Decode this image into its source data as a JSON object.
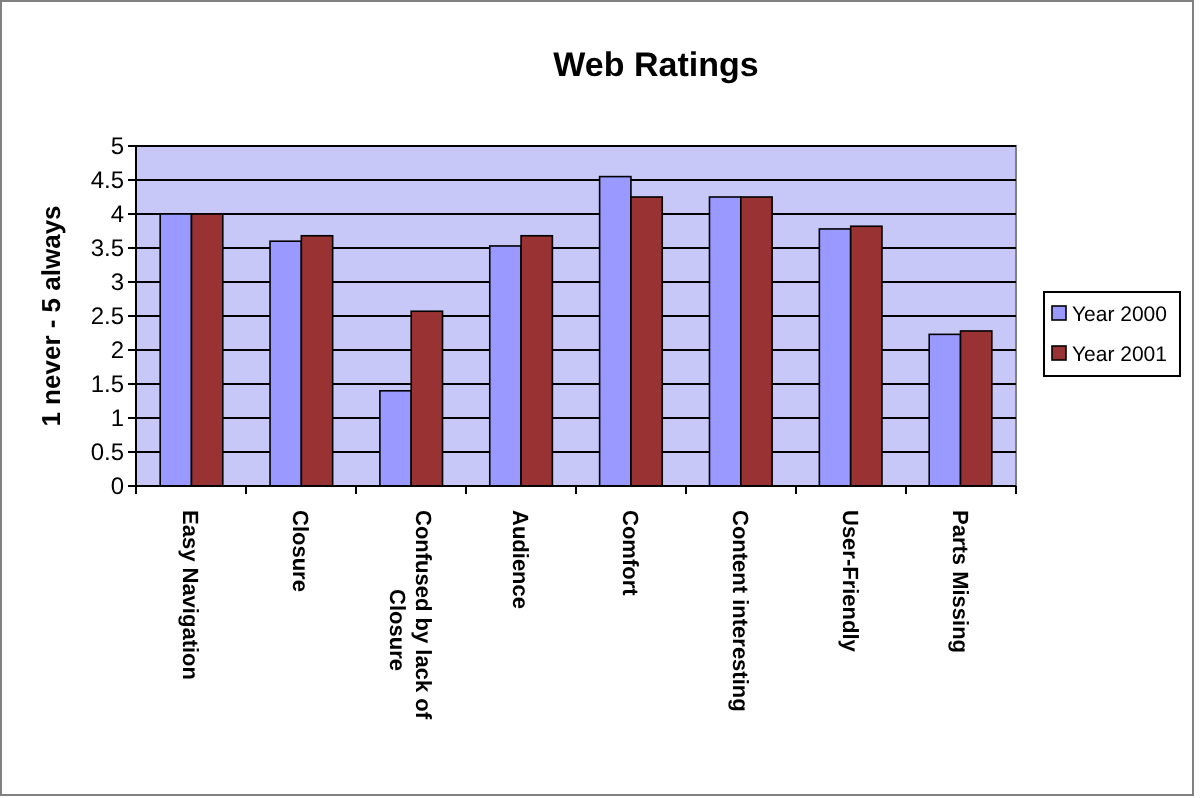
{
  "chart_data": {
    "type": "bar",
    "title": "Web Ratings",
    "ylabel": "1 never - 5 always",
    "categories": [
      "Easy Navigation",
      "Closure",
      "Confused by lack of Closure",
      "Audience",
      "Comfort",
      "Content interesting",
      "User-Friendly",
      "Parts Missing"
    ],
    "series": [
      {
        "name": "Year 2000",
        "color": "#9999ff",
        "values": [
          4.0,
          3.6,
          1.4,
          3.53,
          4.55,
          4.25,
          3.78,
          2.23
        ]
      },
      {
        "name": "Year 2001",
        "color": "#993333",
        "values": [
          4.0,
          3.68,
          2.57,
          3.68,
          4.25,
          4.25,
          3.82,
          2.28
        ]
      }
    ],
    "ylim": [
      0,
      5
    ],
    "yticks": [
      0,
      0.5,
      1,
      1.5,
      2,
      2.5,
      3,
      3.5,
      4,
      4.5,
      5
    ],
    "grid": "y",
    "legend": "right"
  }
}
